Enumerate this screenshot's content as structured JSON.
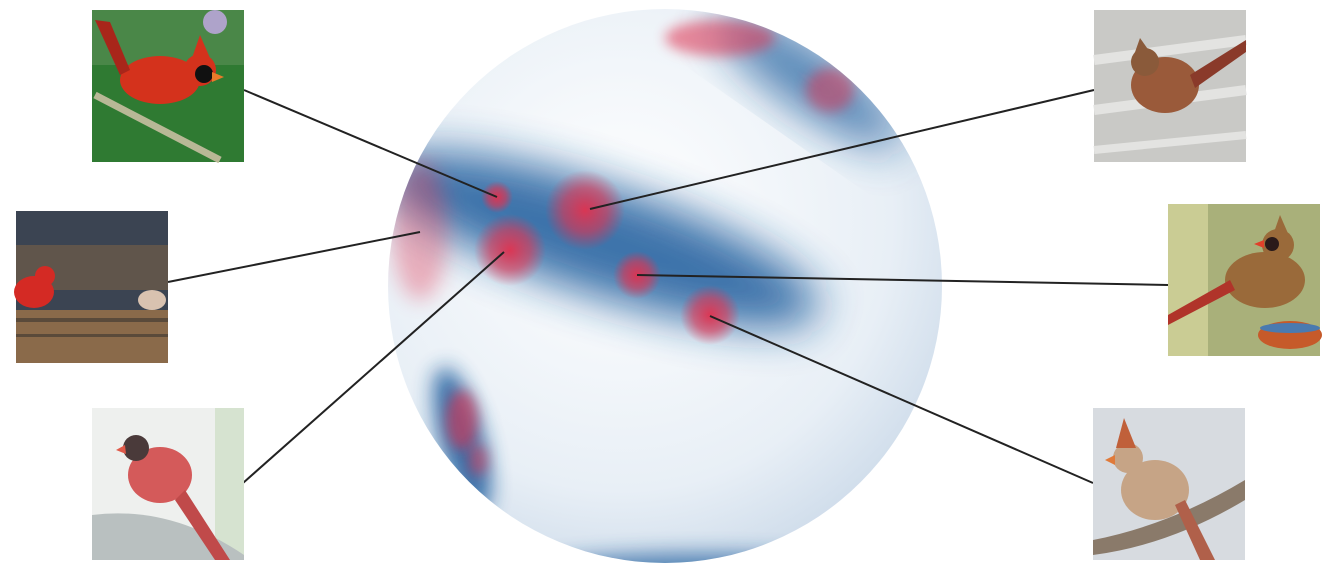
{
  "diagram": {
    "sphere": {
      "base_color": "#e6eef5",
      "density_color": "#1f5c9c",
      "point_color": "#e0324f"
    },
    "thumbnails": [
      {
        "name": "male-cardinal-on-branch",
        "side": "left",
        "bg": "#2f7a32",
        "bird": "#d4321c",
        "accent": "#111111"
      },
      {
        "name": "red-cardinal-on-wooden-fence",
        "side": "left",
        "bg": "#3b4452",
        "bird": "#d42a24",
        "accent": "#8a6a4a"
      },
      {
        "name": "faded-male-cardinal-on-pipe",
        "side": "left",
        "bg": "#eef0ee",
        "bird": "#d45a5a",
        "accent": "#b9c0c0"
      },
      {
        "name": "female-cardinal-on-deck",
        "side": "right",
        "bg": "#c9c9c6",
        "bird": "#9a5a3a",
        "accent": "#e3e3e1"
      },
      {
        "name": "female-cardinal-at-feeder",
        "side": "right",
        "bg": "#a9b07a",
        "bird": "#9a6a3a",
        "accent": "#c65a2a"
      },
      {
        "name": "female-cardinal-on-snowy-branch",
        "side": "right",
        "bg": "#d7dbe0",
        "bird": "#c6a486",
        "accent": "#8a7a6a"
      }
    ]
  }
}
